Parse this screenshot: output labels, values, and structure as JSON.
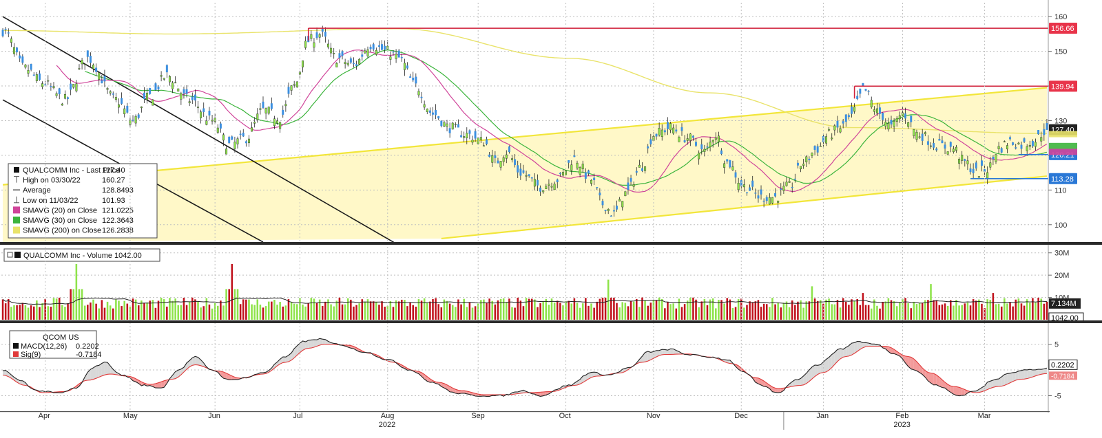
{
  "colors": {
    "up": "#8ee34a",
    "down": "#3b8fe0",
    "vol_up": "#8ee34a",
    "vol_down": "#c0121c",
    "sma20": "#d0459a",
    "sma30": "#3cb43c",
    "sma200": "#e9e36a",
    "channel_fill": "#fff8c8",
    "channel_line": "#f2e63a",
    "downtrend": "#1c1c1c",
    "resist_red": "#d0203a",
    "support_blue": "#2a78d6",
    "macd": "#222222",
    "signal": "#e03a3a",
    "divider": "#2a2a2a"
  },
  "chart_data": [
    {
      "type": "candlestick",
      "title": "QUALCOMM Inc - Last Price",
      "ylim": [
        95,
        164
      ],
      "yticks": [
        100,
        110,
        120,
        130,
        140,
        150,
        160
      ],
      "grid": true,
      "legend": {
        "placement": "bottom-left",
        "entries": [
          {
            "icon": "square",
            "label": "QUALCOMM Inc - Last Price",
            "value": "127.40"
          },
          {
            "icon": "high",
            "label": "High on 03/30/22",
            "value": "160.27"
          },
          {
            "icon": "avg",
            "label": "Average",
            "value": "128.8493"
          },
          {
            "icon": "low",
            "label": "Low on 11/03/22",
            "value": "101.93"
          },
          {
            "icon": "sma20",
            "label": "SMAVG (20)  on Close",
            "value": "121.0225"
          },
          {
            "icon": "sma30",
            "label": "SMAVG (30)  on Close",
            "value": "122.3643"
          },
          {
            "icon": "sma200",
            "label": "SMAVG (200)  on Close",
            "value": "126.2838"
          }
        ]
      },
      "price_tags": [
        {
          "label": "156.66",
          "value": 156.66,
          "style": "red"
        },
        {
          "label": "139.94",
          "value": 139.94,
          "style": "red"
        },
        {
          "label": "127.40",
          "value": 127.4,
          "style": "dark"
        },
        {
          "label": "120.21",
          "value": 120.21,
          "style": "blue"
        },
        {
          "label": "113.28",
          "value": 113.28,
          "style": "blue"
        }
      ],
      "resistance_lines": [
        {
          "value": 156.66,
          "from_index": 108,
          "to_index": 369,
          "color": "red"
        },
        {
          "value": 139.94,
          "from_index": 301,
          "to_index": 369,
          "color": "red"
        }
      ],
      "support_lines": [
        {
          "value": 113.28,
          "from_index": 342,
          "to_index": 369,
          "color": "blue"
        },
        {
          "value": 120.21,
          "from_index": 359,
          "to_index": 369,
          "color": "blue"
        }
      ],
      "channel": {
        "upper": [
          [
            0,
            111.5
          ],
          [
            369,
            139.5
          ]
        ],
        "lower": [
          [
            155,
            96
          ],
          [
            369,
            114
          ]
        ]
      },
      "downtrend_lines": [
        [
          [
            0,
            160
          ],
          [
            155,
            87
          ]
        ],
        [
          [
            0,
            136
          ],
          [
            92,
            95
          ]
        ]
      ],
      "price_anchors": [
        [
          0,
          156
        ],
        [
          8,
          145
        ],
        [
          14,
          141
        ],
        [
          22,
          136
        ],
        [
          30,
          148
        ],
        [
          40,
          136
        ],
        [
          46,
          130
        ],
        [
          52,
          137
        ],
        [
          58,
          143
        ],
        [
          66,
          136
        ],
        [
          74,
          130
        ],
        [
          80,
          123
        ],
        [
          86,
          125
        ],
        [
          92,
          133
        ],
        [
          98,
          131
        ],
        [
          103,
          140
        ],
        [
          108,
          153
        ],
        [
          112,
          155
        ],
        [
          118,
          148
        ],
        [
          124,
          146
        ],
        [
          130,
          152
        ],
        [
          136,
          150
        ],
        [
          140,
          148
        ],
        [
          146,
          140
        ],
        [
          152,
          132
        ],
        [
          158,
          128
        ],
        [
          164,
          126
        ],
        [
          170,
          124
        ],
        [
          174,
          118
        ],
        [
          178,
          121
        ],
        [
          183,
          115
        ],
        [
          190,
          111
        ],
        [
          196,
          113
        ],
        [
          202,
          119
        ],
        [
          208,
          113
        ],
        [
          212,
          106
        ],
        [
          216,
          103
        ],
        [
          220,
          109
        ],
        [
          226,
          117
        ],
        [
          230,
          126
        ],
        [
          236,
          128
        ],
        [
          242,
          125
        ],
        [
          248,
          121
        ],
        [
          252,
          126
        ],
        [
          256,
          118
        ],
        [
          262,
          111
        ],
        [
          268,
          108
        ],
        [
          273,
          108
        ],
        [
          278,
          111
        ],
        [
          283,
          118
        ],
        [
          288,
          122
        ],
        [
          292,
          126
        ],
        [
          296,
          128
        ],
        [
          300,
          131
        ],
        [
          302,
          135
        ],
        [
          304,
          139
        ],
        [
          310,
          132
        ],
        [
          314,
          128
        ],
        [
          318,
          132
        ],
        [
          324,
          126
        ],
        [
          330,
          123
        ],
        [
          336,
          122
        ],
        [
          340,
          118
        ],
        [
          344,
          115
        ],
        [
          348,
          116
        ],
        [
          352,
          122
        ],
        [
          356,
          124
        ],
        [
          360,
          123
        ],
        [
          364,
          124
        ],
        [
          369,
          127.4
        ]
      ]
    },
    {
      "type": "bar",
      "title": "QUALCOMM Inc - Volume",
      "value_label": "1042.00",
      "ylim": [
        0,
        33
      ],
      "unit": "M",
      "yticks": [
        10,
        20,
        30
      ],
      "ytick_labels": [
        "10M",
        "20M",
        "30M"
      ],
      "grid": true,
      "average_tag": "7.134M",
      "last_tag": "1042.00",
      "spikes": [
        [
          26,
          25
        ],
        [
          81,
          25
        ],
        [
          214,
          18
        ],
        [
          286,
          15
        ],
        [
          304,
          12
        ],
        [
          328,
          16
        ],
        [
          350,
          12
        ]
      ]
    },
    {
      "type": "line",
      "title": "QCOM US",
      "ylim": [
        -8,
        8
      ],
      "yticks": [
        -5,
        5
      ],
      "ytick_labels": [
        "-5",
        "5"
      ],
      "grid": true,
      "legend": {
        "placement": "top-left",
        "entries": [
          {
            "icon": "macd",
            "label": "MACD(12,26)",
            "value": "0.2202"
          },
          {
            "icon": "sig",
            "label": "Sig(9)",
            "value": "-0.7184"
          }
        ]
      },
      "tags": [
        {
          "label": "0.2202",
          "value": 0.2202
        },
        {
          "label": "-0.7184",
          "value": -0.7184
        }
      ],
      "macd_anchors": [
        [
          0,
          0
        ],
        [
          6,
          -2
        ],
        [
          12,
          -4
        ],
        [
          20,
          -4.5
        ],
        [
          26,
          -3.5
        ],
        [
          32,
          0.5
        ],
        [
          36,
          1.5
        ],
        [
          42,
          -1
        ],
        [
          50,
          -3
        ],
        [
          56,
          -3.5
        ],
        [
          62,
          0
        ],
        [
          68,
          2.5
        ],
        [
          74,
          0
        ],
        [
          80,
          -2
        ],
        [
          86,
          -1.5
        ],
        [
          92,
          -0.5
        ],
        [
          100,
          2.5
        ],
        [
          106,
          5.5
        ],
        [
          112,
          6
        ],
        [
          118,
          5
        ],
        [
          128,
          3.5
        ],
        [
          136,
          2
        ],
        [
          144,
          0
        ],
        [
          152,
          -2.5
        ],
        [
          160,
          -4.5
        ],
        [
          168,
          -5
        ],
        [
          176,
          -5
        ],
        [
          184,
          -4
        ],
        [
          190,
          -5
        ],
        [
          200,
          -3
        ],
        [
          208,
          -0.5
        ],
        [
          214,
          -1
        ],
        [
          222,
          0.5
        ],
        [
          228,
          3.5
        ],
        [
          236,
          4
        ],
        [
          242,
          3
        ],
        [
          250,
          2.5
        ],
        [
          256,
          2
        ],
        [
          262,
          -0.5
        ],
        [
          268,
          -3
        ],
        [
          274,
          -4.5
        ],
        [
          280,
          -2
        ],
        [
          288,
          1
        ],
        [
          296,
          4
        ],
        [
          302,
          5.5
        ],
        [
          308,
          5
        ],
        [
          316,
          3
        ],
        [
          322,
          0
        ],
        [
          330,
          -3
        ],
        [
          338,
          -5
        ],
        [
          344,
          -4
        ],
        [
          350,
          -2
        ],
        [
          356,
          -0.5
        ],
        [
          362,
          0
        ],
        [
          369,
          0.2202
        ]
      ],
      "signal_anchors": [
        [
          0,
          -1
        ],
        [
          8,
          -3
        ],
        [
          14,
          -4.4
        ],
        [
          22,
          -4.2
        ],
        [
          30,
          -2
        ],
        [
          38,
          -0.8
        ],
        [
          44,
          -1.2
        ],
        [
          52,
          -2.8
        ],
        [
          60,
          -1.8
        ],
        [
          68,
          1
        ],
        [
          76,
          -0.2
        ],
        [
          84,
          -1.6
        ],
        [
          92,
          -0.8
        ],
        [
          100,
          1.5
        ],
        [
          108,
          4.2
        ],
        [
          114,
          5
        ],
        [
          122,
          4.8
        ],
        [
          130,
          3.2
        ],
        [
          138,
          1.5
        ],
        [
          146,
          -0.2
        ],
        [
          154,
          -2.4
        ],
        [
          162,
          -4
        ],
        [
          170,
          -4.8
        ],
        [
          178,
          -4.8
        ],
        [
          186,
          -4.4
        ],
        [
          194,
          -4.2
        ],
        [
          202,
          -3
        ],
        [
          210,
          -1.2
        ],
        [
          218,
          -0.6
        ],
        [
          226,
          1.5
        ],
        [
          234,
          3
        ],
        [
          242,
          3.1
        ],
        [
          250,
          2.5
        ],
        [
          258,
          1.2
        ],
        [
          266,
          -1.5
        ],
        [
          274,
          -3.6
        ],
        [
          282,
          -3
        ],
        [
          290,
          -0.5
        ],
        [
          298,
          2.6
        ],
        [
          306,
          4.6
        ],
        [
          312,
          4.6
        ],
        [
          320,
          2.6
        ],
        [
          328,
          -0.6
        ],
        [
          336,
          -3.2
        ],
        [
          344,
          -4.4
        ],
        [
          352,
          -3.2
        ],
        [
          360,
          -1.8
        ],
        [
          369,
          -0.7184
        ]
      ]
    },
    {
      "type": "axis",
      "months": [
        {
          "label": "Apr",
          "index": 15
        },
        {
          "label": "May",
          "index": 45
        },
        {
          "label": "Jun",
          "index": 75
        },
        {
          "label": "Jul",
          "index": 105
        },
        {
          "label": "Aug",
          "index": 136
        },
        {
          "label": "Sep",
          "index": 168
        },
        {
          "label": "Oct",
          "index": 199
        },
        {
          "label": "Nov",
          "index": 230
        },
        {
          "label": "Dec",
          "index": 261
        },
        {
          "label": "Jan",
          "index": 290
        },
        {
          "label": "Feb",
          "index": 318
        },
        {
          "label": "Mar",
          "index": 347
        }
      ],
      "years": [
        {
          "label": "2022",
          "index": 136
        },
        {
          "label": "2023",
          "index": 318
        }
      ],
      "year_separator_index": 276
    }
  ]
}
